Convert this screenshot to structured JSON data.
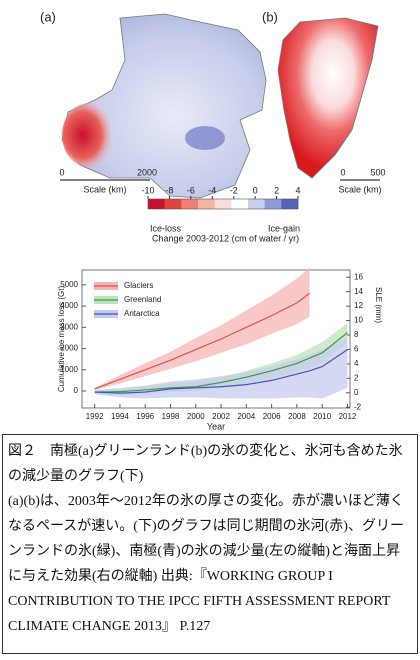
{
  "maps": {
    "a": {
      "label": "(a)",
      "scale_ticks": [
        0,
        2000
      ],
      "scale_label": "Scale (km)"
    },
    "b": {
      "label": "(b)",
      "scale_ticks": [
        0,
        500
      ],
      "scale_label": "Scale (km)"
    }
  },
  "colorbar": {
    "lim": [
      -10,
      4
    ],
    "ticks": [
      -10,
      -8,
      -6,
      -4,
      -2,
      0,
      2,
      4
    ],
    "colors": [
      "#c8102e",
      "#e0443f",
      "#ef7f73",
      "#f6b3a8",
      "#fbdcd6",
      "#ffffff",
      "#c9cfee",
      "#8f9ad6",
      "#5563b8"
    ],
    "low_label": "Ice-loss",
    "high_label": "Ice-gain",
    "title": "Change 2003-2012 (cm of water / yr)"
  },
  "chart_data": {
    "type": "line",
    "ylabel": "Cumulative ice mass loss (Gt)",
    "y2label": "SLE (mm)",
    "xlabel": "Year",
    "x": [
      1992,
      1994,
      1996,
      1998,
      2000,
      2002,
      2004,
      2006,
      2008,
      2009,
      2010,
      2012
    ],
    "xlim": [
      1991,
      2012.2
    ],
    "xticks": [
      1992,
      1994,
      1996,
      1998,
      2000,
      2002,
      2004,
      2006,
      2008,
      2010,
      2012
    ],
    "ylim": [
      -800,
      5700
    ],
    "yticks": [
      0,
      1000,
      2000,
      3000,
      4000,
      5000
    ],
    "y2lim": [
      -2.1,
      17
    ],
    "y2ticks": [
      -2,
      0,
      2,
      4,
      6,
      8,
      10,
      12,
      14,
      16
    ],
    "legend": "upper-left",
    "series": [
      {
        "name": "Glaciers",
        "color": "#d9534f",
        "band_color": "#f4b6b3",
        "values": [
          100,
          550,
          1000,
          1450,
          1950,
          2450,
          3000,
          3550,
          4150,
          4600,
          null,
          null
        ],
        "lower": [
          50,
          350,
          700,
          1050,
          1400,
          1800,
          2200,
          2700,
          3150,
          3500,
          null,
          null
        ],
        "upper": [
          150,
          750,
          1300,
          1850,
          2500,
          3100,
          3800,
          4500,
          5300,
          5800,
          null,
          null
        ]
      },
      {
        "name": "Greenland",
        "color": "#3a9a4a",
        "band_color": "#bfe3b8",
        "values": [
          -50,
          -30,
          50,
          150,
          200,
          400,
          650,
          950,
          1300,
          1550,
          1800,
          2750
        ],
        "lower": [
          -150,
          -200,
          -150,
          -50,
          0,
          150,
          350,
          600,
          900,
          1100,
          1300,
          2300
        ],
        "upper": [
          50,
          150,
          250,
          350,
          450,
          650,
          950,
          1300,
          1700,
          2000,
          2300,
          3200
        ]
      },
      {
        "name": "Antarctica",
        "color": "#4454b4",
        "band_color": "#c5cbee",
        "values": [
          -50,
          -100,
          -50,
          100,
          150,
          200,
          300,
          500,
          800,
          950,
          1150,
          1950
        ],
        "lower": [
          -150,
          -300,
          -350,
          -300,
          -300,
          -350,
          -350,
          -350,
          -300,
          -300,
          -350,
          150
        ],
        "upper": [
          50,
          100,
          250,
          450,
          550,
          700,
          900,
          1150,
          1500,
          1700,
          1950,
          2500
        ]
      }
    ]
  },
  "caption": {
    "title": "図２　南極(a)グリーンランド(b)の氷の変化と、氷河も含めた氷の減少量のグラフ(下)",
    "body": "(a)(b)は、2003年～2012年の氷の厚さの変化。赤が濃いほど薄くなるペースが速い。(下)のグラフは同じ期間の氷河(赤)、グリーンランドの氷(緑)、南極(青)の氷の減少量(左の縦軸)と海面上昇に与えた効果(右の縦軸) 出典:『WORKING GROUP I CONTRIBUTION TO THE IPCC FIFTH ASSESSMENT REPORT CLIMATE CHANGE 2013』 P.127"
  }
}
